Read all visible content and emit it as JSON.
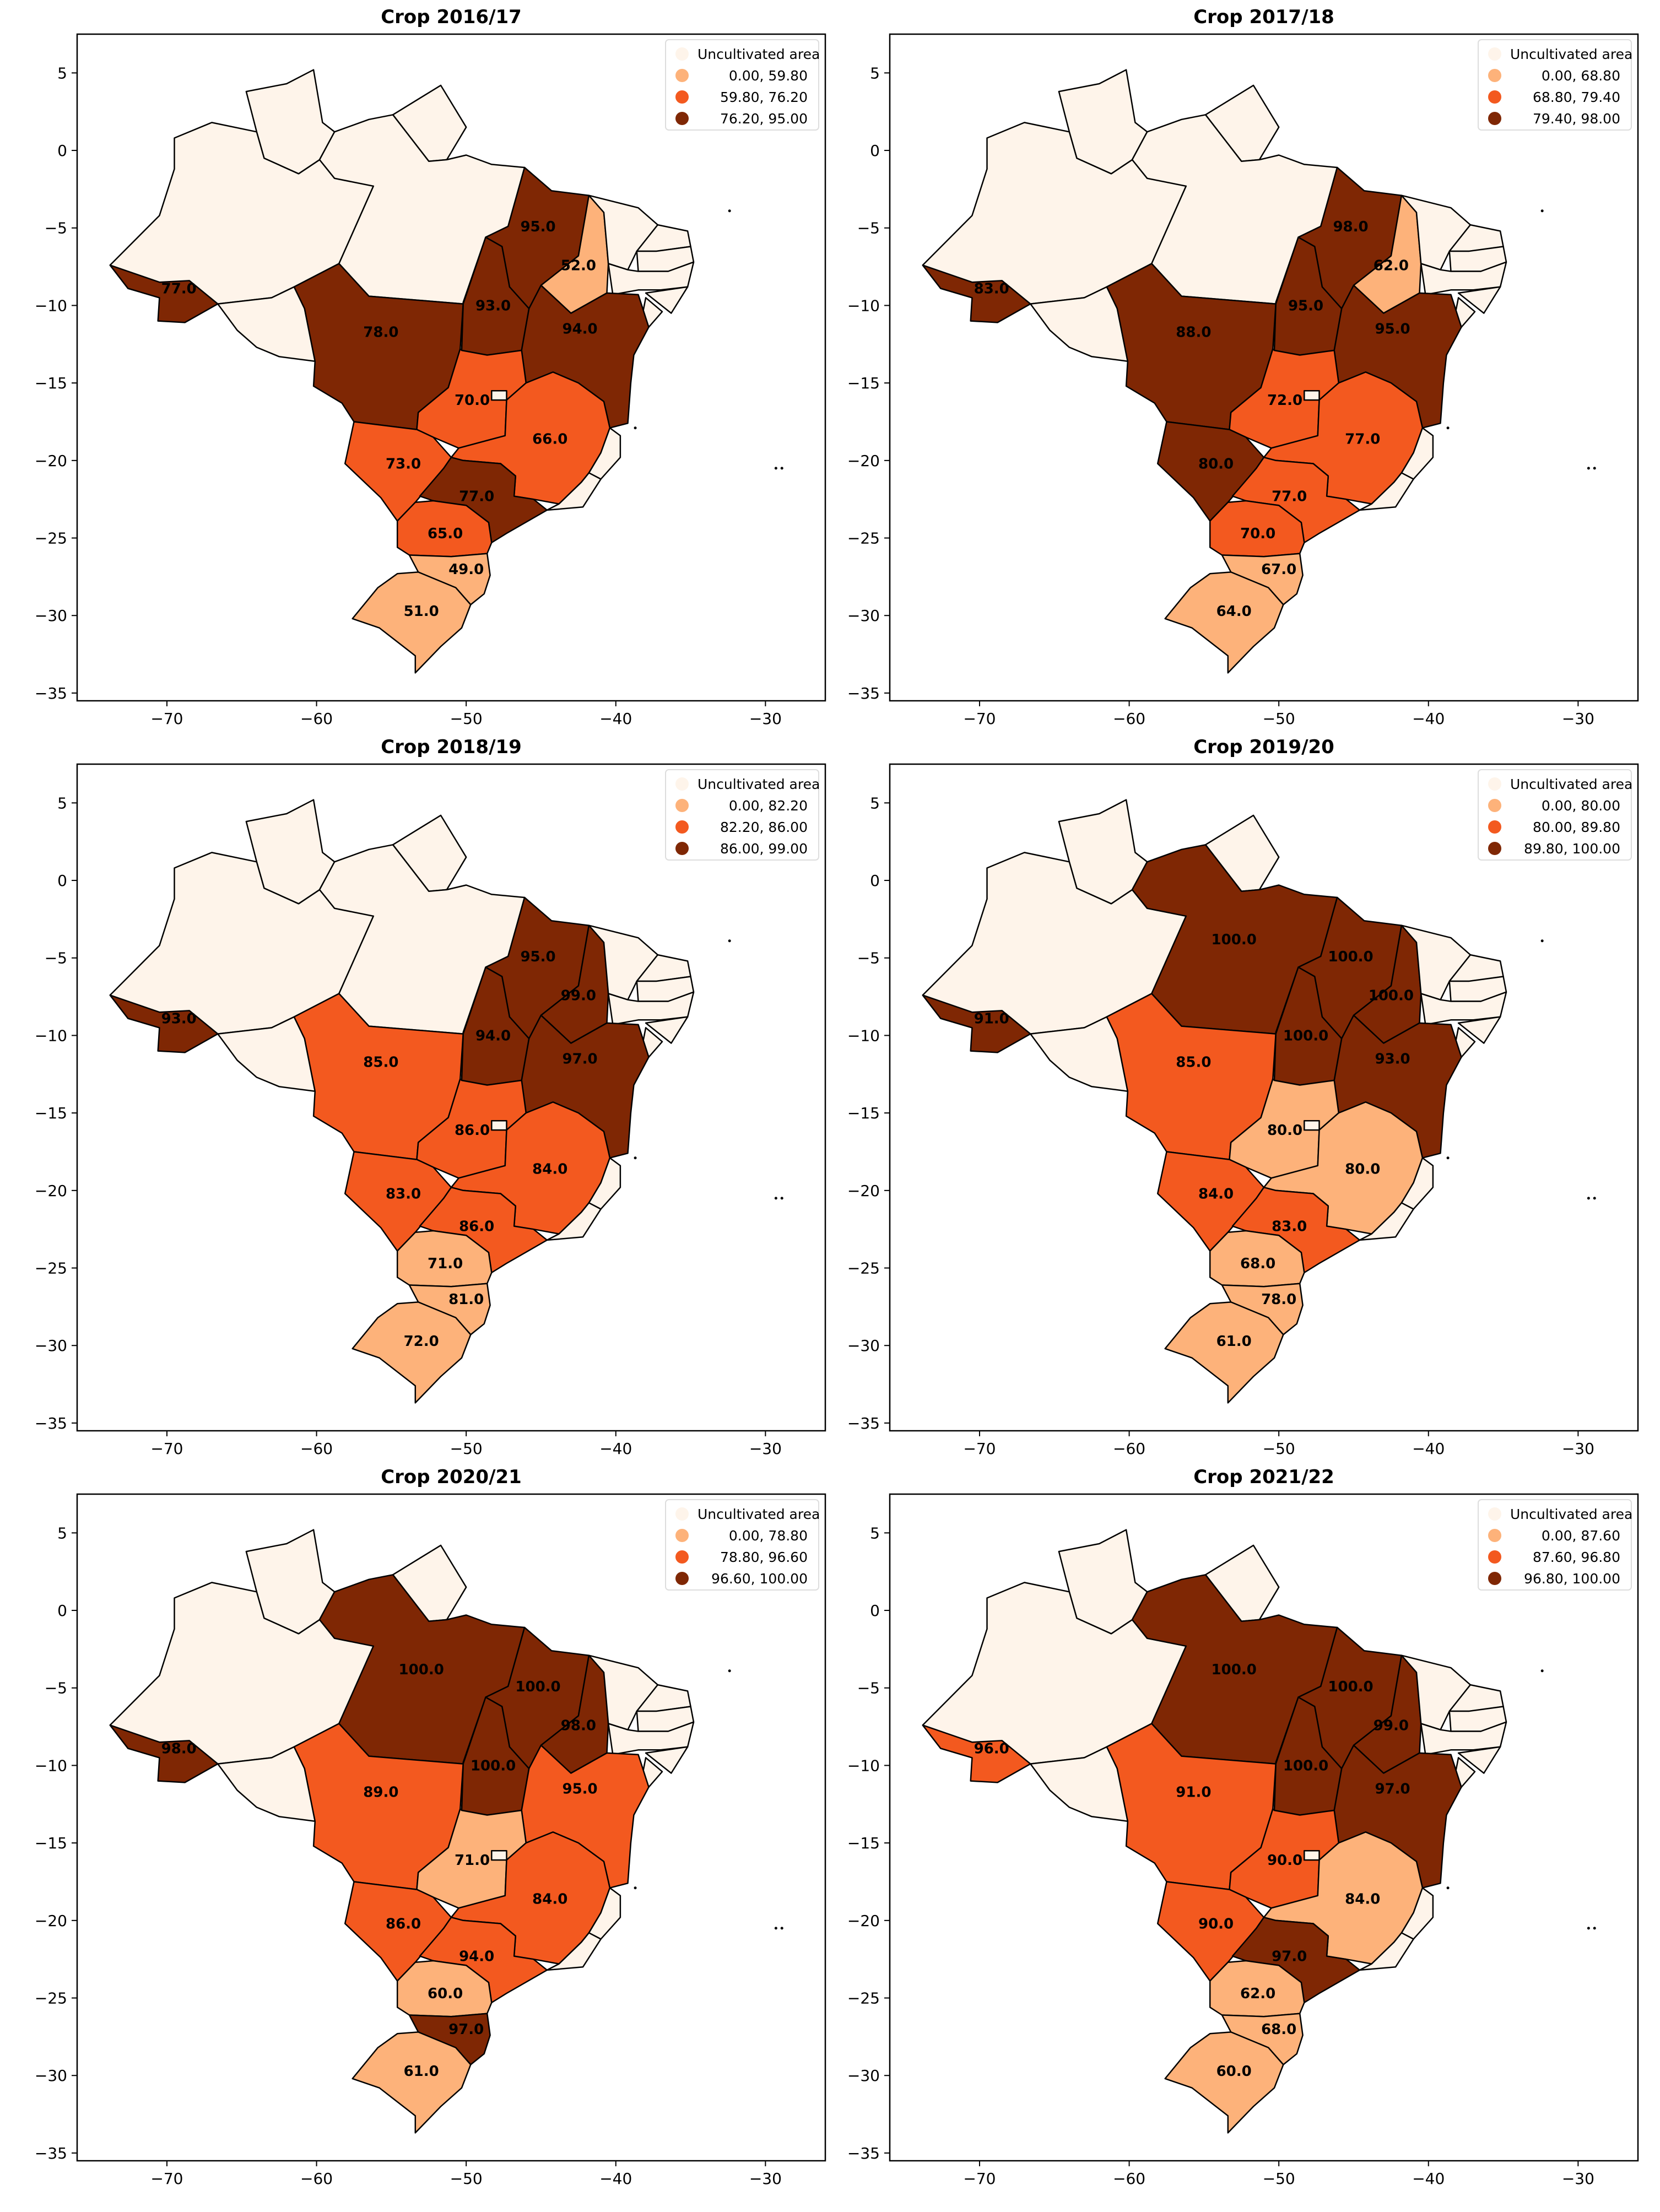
{
  "colors": {
    "uncultivated": "#fef4ea",
    "low": "#fdb27a",
    "mid": "#f3591f",
    "high": "#7f2704"
  },
  "axes": {
    "xlim": [
      -76,
      -26
    ],
    "ylim": [
      -35.5,
      7.5
    ],
    "xticks": [
      -70,
      -60,
      -50,
      -40,
      -30
    ],
    "yticks": [
      5,
      0,
      -5,
      -10,
      -15,
      -20,
      -25,
      -30,
      -35
    ]
  },
  "panels": [
    {
      "title": "Crop 2016/17",
      "legend": [
        "Uncultivated area",
        "0.00, 59.80",
        "59.80, 76.20",
        "76.20, 95.00"
      ],
      "regions": {
        "AC": [
          "high",
          "77.0"
        ],
        "RO": [
          "uncult",
          ""
        ],
        "AM": [
          "uncult",
          ""
        ],
        "RR": [
          "uncult",
          ""
        ],
        "PA": [
          "uncult",
          ""
        ],
        "AP": [
          "uncult",
          ""
        ],
        "MT": [
          "high",
          "78.0"
        ],
        "TO": [
          "high",
          "93.0"
        ],
        "MA": [
          "high",
          "95.0"
        ],
        "PI": [
          "low",
          "52.0"
        ],
        "BA": [
          "high",
          "94.0"
        ],
        "GO": [
          "mid",
          "70.0"
        ],
        "MG": [
          "mid",
          "66.0"
        ],
        "MS": [
          "mid",
          "73.0"
        ],
        "SP": [
          "high",
          "77.0"
        ],
        "PR": [
          "mid",
          "65.0"
        ],
        "SC": [
          "low",
          "49.0"
        ],
        "RS": [
          "low",
          "51.0"
        ]
      }
    },
    {
      "title": "Crop 2017/18",
      "legend": [
        "Uncultivated area",
        "0.00, 68.80",
        "68.80, 79.40",
        "79.40, 98.00"
      ],
      "regions": {
        "AC": [
          "high",
          "83.0"
        ],
        "RO": [
          "uncult",
          ""
        ],
        "AM": [
          "uncult",
          ""
        ],
        "RR": [
          "uncult",
          ""
        ],
        "PA": [
          "uncult",
          ""
        ],
        "AP": [
          "uncult",
          ""
        ],
        "MT": [
          "high",
          "88.0"
        ],
        "TO": [
          "high",
          "95.0"
        ],
        "MA": [
          "high",
          "98.0"
        ],
        "PI": [
          "low",
          "62.0"
        ],
        "BA": [
          "high",
          "95.0"
        ],
        "GO": [
          "mid",
          "72.0"
        ],
        "MG": [
          "mid",
          "77.0"
        ],
        "MS": [
          "high",
          "80.0"
        ],
        "SP": [
          "mid",
          "77.0"
        ],
        "PR": [
          "mid",
          "70.0"
        ],
        "SC": [
          "low",
          "67.0"
        ],
        "RS": [
          "low",
          "64.0"
        ]
      }
    },
    {
      "title": "Crop 2018/19",
      "legend": [
        "Uncultivated area",
        "0.00, 82.20",
        "82.20, 86.00",
        "86.00, 99.00"
      ],
      "regions": {
        "AC": [
          "high",
          "93.0"
        ],
        "RO": [
          "uncult",
          ""
        ],
        "AM": [
          "uncult",
          ""
        ],
        "RR": [
          "uncult",
          ""
        ],
        "PA": [
          "uncult",
          ""
        ],
        "AP": [
          "uncult",
          ""
        ],
        "MT": [
          "mid",
          "85.0"
        ],
        "TO": [
          "high",
          "94.0"
        ],
        "MA": [
          "high",
          "95.0"
        ],
        "PI": [
          "high",
          "99.0"
        ],
        "BA": [
          "high",
          "97.0"
        ],
        "GO": [
          "mid",
          "86.0"
        ],
        "MG": [
          "mid",
          "84.0"
        ],
        "MS": [
          "mid",
          "83.0"
        ],
        "SP": [
          "mid",
          "86.0"
        ],
        "PR": [
          "low",
          "71.0"
        ],
        "SC": [
          "low",
          "81.0"
        ],
        "RS": [
          "low",
          "72.0"
        ]
      }
    },
    {
      "title": "Crop 2019/20",
      "legend": [
        "Uncultivated area",
        "0.00,  80.00",
        "80.00,  89.80",
        "89.80, 100.00"
      ],
      "regions": {
        "AC": [
          "high",
          "91.0"
        ],
        "RO": [
          "uncult",
          ""
        ],
        "AM": [
          "uncult",
          ""
        ],
        "RR": [
          "uncult",
          ""
        ],
        "PA": [
          "high",
          "100.0"
        ],
        "AP": [
          "uncult",
          ""
        ],
        "MT": [
          "mid",
          "85.0"
        ],
        "TO": [
          "high",
          "100.0"
        ],
        "MA": [
          "high",
          "100.0"
        ],
        "PI": [
          "high",
          "100.0"
        ],
        "BA": [
          "high",
          "93.0"
        ],
        "GO": [
          "low",
          "80.0"
        ],
        "MG": [
          "low",
          "80.0"
        ],
        "MS": [
          "mid",
          "84.0"
        ],
        "SP": [
          "mid",
          "83.0"
        ],
        "PR": [
          "low",
          "68.0"
        ],
        "SC": [
          "low",
          "78.0"
        ],
        "RS": [
          "low",
          "61.0"
        ]
      }
    },
    {
      "title": "Crop 2020/21",
      "legend": [
        "Uncultivated area",
        "0.00,  78.80",
        "78.80,  96.60",
        "96.60, 100.00"
      ],
      "regions": {
        "AC": [
          "high",
          "98.0"
        ],
        "RO": [
          "uncult",
          ""
        ],
        "AM": [
          "uncult",
          ""
        ],
        "RR": [
          "uncult",
          ""
        ],
        "PA": [
          "high",
          "100.0"
        ],
        "AP": [
          "uncult",
          ""
        ],
        "MT": [
          "mid",
          "89.0"
        ],
        "TO": [
          "high",
          "100.0"
        ],
        "MA": [
          "high",
          "100.0"
        ],
        "PI": [
          "high",
          "98.0"
        ],
        "BA": [
          "mid",
          "95.0"
        ],
        "GO": [
          "low",
          "71.0"
        ],
        "MG": [
          "mid",
          "84.0"
        ],
        "MS": [
          "mid",
          "86.0"
        ],
        "SP": [
          "mid",
          "94.0"
        ],
        "PR": [
          "low",
          "60.0"
        ],
        "SC": [
          "high",
          "97.0"
        ],
        "RS": [
          "low",
          "61.0"
        ]
      }
    },
    {
      "title": "Crop 2021/22",
      "legend": [
        "Uncultivated area",
        "0.00,  87.60",
        "87.60,  96.80",
        "96.80, 100.00"
      ],
      "regions": {
        "AC": [
          "mid",
          "96.0"
        ],
        "RO": [
          "uncult",
          ""
        ],
        "AM": [
          "uncult",
          ""
        ],
        "RR": [
          "uncult",
          ""
        ],
        "PA": [
          "high",
          "100.0"
        ],
        "AP": [
          "uncult",
          ""
        ],
        "MT": [
          "mid",
          "91.0"
        ],
        "TO": [
          "high",
          "100.0"
        ],
        "MA": [
          "high",
          "100.0"
        ],
        "PI": [
          "high",
          "99.0"
        ],
        "BA": [
          "high",
          "97.0"
        ],
        "GO": [
          "mid",
          "90.0"
        ],
        "MG": [
          "low",
          "84.0"
        ],
        "MS": [
          "mid",
          "90.0"
        ],
        "SP": [
          "high",
          "97.0"
        ],
        "PR": [
          "low",
          "62.0"
        ],
        "SC": [
          "low",
          "68.0"
        ],
        "RS": [
          "low",
          "60.0"
        ]
      }
    }
  ]
}
